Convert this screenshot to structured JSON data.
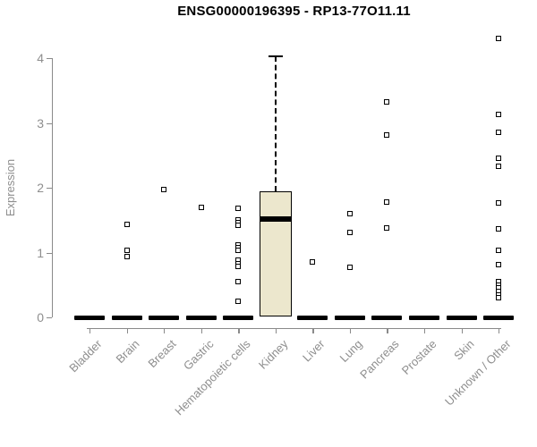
{
  "page": {
    "background_color": "#ffffff",
    "text_color": "#8e8e8e",
    "accent_black": "#000000"
  },
  "chart_data": {
    "type": "boxplot",
    "title": "ENSG00000196395 - RP13-77O11.11",
    "ylabel": "Expression",
    "xlabel": "",
    "ylim": [
      0,
      4.35
    ],
    "yticks": [
      0,
      1,
      2,
      3,
      4
    ],
    "grid": false,
    "legend": "none",
    "axis_color": "#8a8a8a",
    "tick_text_color": "#8e8e8e",
    "box_fill_color": "#ece7cd",
    "box_border_color": "#000000",
    "outlier_symbol": "open-square",
    "categories": [
      "Bladder",
      "Brain",
      "Breast",
      "Gastric",
      "Hematopoietic cells",
      "Kidney",
      "Liver",
      "Lung",
      "Pancreas",
      "Prostate",
      "Skin",
      "Unknown / Other"
    ],
    "series": [
      {
        "category": "Bladder",
        "median": 0,
        "q1": 0,
        "q3": 0,
        "whisker_low": 0,
        "whisker_high": 0,
        "outliers": []
      },
      {
        "category": "Brain",
        "median": 0,
        "q1": 0,
        "q3": 0,
        "whisker_low": 0,
        "whisker_high": 0,
        "outliers": [
          1.44,
          1.03,
          0.94
        ]
      },
      {
        "category": "Breast",
        "median": 0,
        "q1": 0,
        "q3": 0,
        "whisker_low": 0,
        "whisker_high": 0,
        "outliers": [
          1.97
        ]
      },
      {
        "category": "Gastric",
        "median": 0,
        "q1": 0,
        "q3": 0,
        "whisker_low": 0,
        "whisker_high": 0,
        "outliers": [
          1.7
        ]
      },
      {
        "category": "Hematopoietic cells",
        "median": 0,
        "q1": 0,
        "q3": 0,
        "whisker_low": 0,
        "whisker_high": 0,
        "outliers": [
          1.68,
          1.5,
          1.46,
          1.42,
          1.12,
          1.08,
          1.03,
          0.88,
          0.83,
          0.78,
          0.55,
          0.25
        ]
      },
      {
        "category": "Kidney",
        "median": 1.52,
        "q1": 0.02,
        "q3": 1.95,
        "whisker_low": 0.02,
        "whisker_high": 4.03,
        "outliers": []
      },
      {
        "category": "Liver",
        "median": 0,
        "q1": 0,
        "q3": 0,
        "whisker_low": 0,
        "whisker_high": 0,
        "outliers": [
          0.86
        ]
      },
      {
        "category": "Lung",
        "median": 0,
        "q1": 0,
        "q3": 0,
        "whisker_low": 0,
        "whisker_high": 0,
        "outliers": [
          1.6,
          1.31,
          0.77
        ]
      },
      {
        "category": "Pancreas",
        "median": 0,
        "q1": 0,
        "q3": 0,
        "whisker_low": 0,
        "whisker_high": 0,
        "outliers": [
          3.32,
          2.82,
          1.78,
          1.38
        ]
      },
      {
        "category": "Prostate",
        "median": 0,
        "q1": 0,
        "q3": 0,
        "whisker_low": 0,
        "whisker_high": 0,
        "outliers": []
      },
      {
        "category": "Skin",
        "median": 0,
        "q1": 0,
        "q3": 0,
        "whisker_low": 0,
        "whisker_high": 0,
        "outliers": []
      },
      {
        "category": "Unknown / Other",
        "median": 0,
        "q1": 0,
        "q3": 0,
        "whisker_low": 0,
        "whisker_high": 0,
        "outliers": [
          4.31,
          3.13,
          2.86,
          2.45,
          2.33,
          1.76,
          1.36,
          1.03,
          0.82,
          0.55,
          0.5,
          0.45,
          0.4,
          0.35,
          0.3
        ]
      }
    ]
  }
}
